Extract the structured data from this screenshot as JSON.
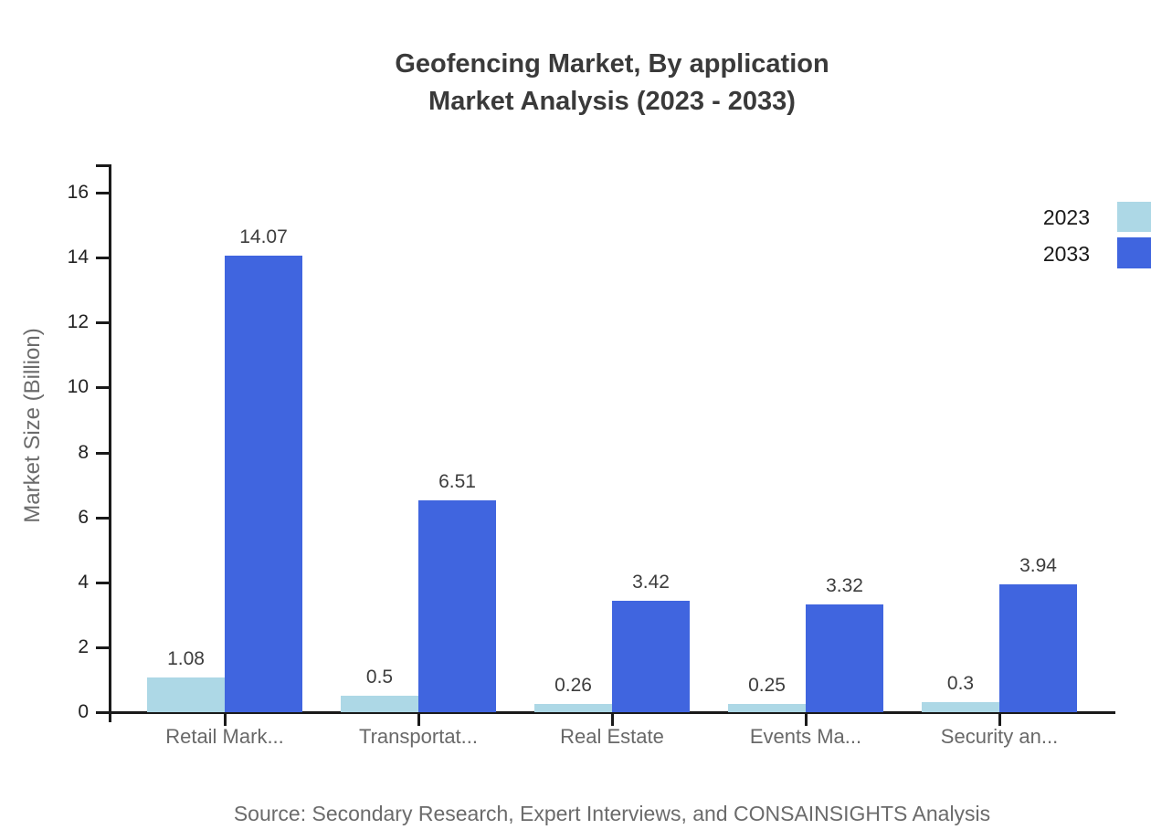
{
  "title": {
    "line1": "Geofencing Market, By application",
    "line2": "Market Analysis (2023 - 2033)"
  },
  "source_note": "Source: Secondary Research, Expert Interviews, and CONSAINSIGHTS Analysis",
  "colors": {
    "series_2023": "#ADD8E6",
    "series_2033": "#4065DF",
    "axis": "#1a1a1a",
    "title_text": "#3a3a3a",
    "category_text": "#696969",
    "value_text": "#3d3d3d",
    "muted_text": "#6b6b6b"
  },
  "chart_data": {
    "type": "bar",
    "title": "Geofencing Market, By application Market Analysis (2023 - 2033)",
    "categories": [
      "Retail Mark...",
      "Transportat...",
      "Real Estate",
      "Events Ma...",
      "Security an..."
    ],
    "series": [
      {
        "name": "2023",
        "color": "#ADD8E6",
        "values": [
          1.08,
          0.5,
          0.26,
          0.25,
          0.3
        ]
      },
      {
        "name": "2033",
        "color": "#4065DF",
        "values": [
          14.07,
          6.51,
          3.42,
          3.32,
          3.94
        ]
      }
    ],
    "xlabel": "",
    "ylabel": "Market Size (Billion)",
    "ylim": [
      0,
      16
    ],
    "yticks": [
      0,
      2,
      4,
      6,
      8,
      10,
      12,
      14,
      16
    ],
    "grid": false,
    "value_labels": true,
    "legend_position": "top-right"
  }
}
